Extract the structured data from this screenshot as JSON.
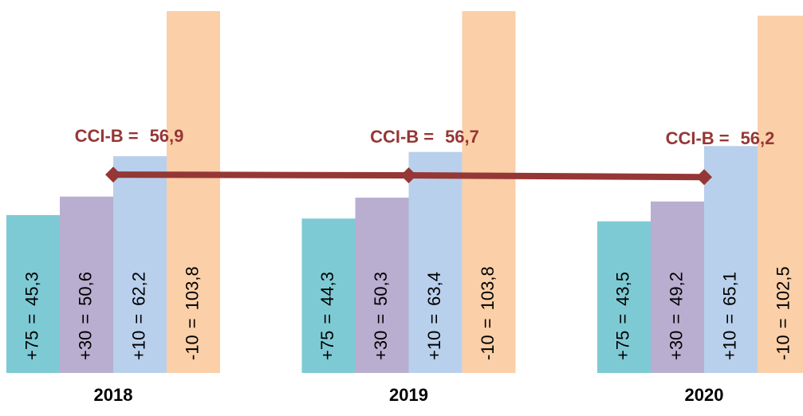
{
  "chart_data": {
    "type": "bar",
    "categories": [
      "2018",
      "2019",
      "2020"
    ],
    "separator": "=",
    "series": [
      {
        "name": "+75",
        "color": "#7ecad4",
        "values": [
          45.3,
          44.3,
          43.5
        ],
        "value_labels": [
          "45,3",
          "44,3",
          "43,5"
        ]
      },
      {
        "name": "+30",
        "color": "#b9aed0",
        "values": [
          50.6,
          50.3,
          49.2
        ],
        "value_labels": [
          "50,6",
          "50,3",
          "49,2"
        ]
      },
      {
        "name": "+10",
        "color": "#b8d0ec",
        "values": [
          62.2,
          63.4,
          65.1
        ],
        "value_labels": [
          "62,2",
          "63,4",
          "65,1"
        ]
      },
      {
        "name": "-10",
        "color": "#fbcfa8",
        "values": [
          103.8,
          103.8,
          102.5
        ],
        "value_labels": [
          "103,8",
          "103,8",
          "102,5"
        ]
      }
    ],
    "line": {
      "name": "CCI-B",
      "color": "#953735",
      "values": [
        56.9,
        56.7,
        56.2
      ],
      "value_labels": [
        "56,9",
        "56,7",
        "56,2"
      ]
    },
    "ylim": [
      0,
      107
    ]
  }
}
